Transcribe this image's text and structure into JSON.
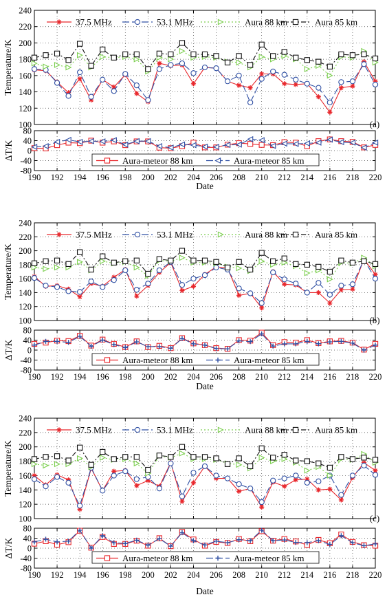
{
  "colors": {
    "s375": "#e8262b",
    "s531": "#2f4fa3",
    "aura88": "#7ccf4f",
    "aura85": "#111111",
    "diff88": "#e8262b",
    "diff85": "#2f4fa3",
    "grid": "#444444"
  },
  "chart_data": [
    {
      "type": "line",
      "panel_label": "(a)",
      "xlabel": "Date",
      "x": [
        190,
        191,
        192,
        193,
        194,
        195,
        196,
        197,
        198,
        199,
        200,
        201,
        202,
        203,
        204,
        205,
        206,
        207,
        208,
        209,
        210,
        211,
        212,
        213,
        214,
        215,
        216,
        217,
        218,
        219,
        220
      ],
      "xticks": [
        190,
        192,
        194,
        196,
        198,
        200,
        202,
        204,
        206,
        208,
        210,
        212,
        214,
        216,
        218,
        220
      ],
      "temperature": {
        "ylabel": "Temperature/K",
        "ylim": [
          100,
          240
        ],
        "yticks": [
          100,
          120,
          140,
          160,
          180,
          200,
          220,
          240
        ],
        "legend": [
          "37.5 MHz",
          "53.1 MHz",
          "Aura 88 km",
          "Aura 85 km"
        ],
        "series": [
          {
            "name": "37.5 MHz",
            "marker": "star",
            "values": [
              167,
              166,
              152,
              139,
              156,
              130,
              155,
              146,
              161,
              138,
              128,
              175,
              172,
              173,
              150,
              170,
              169,
              153,
              148,
              145,
              162,
              162,
              150,
              149,
              150,
              134,
              115,
              145,
              147,
              177,
              153
            ]
          },
          {
            "name": "53.1 MHz",
            "marker": "circle",
            "values": [
              168,
              167,
              151,
              135,
              164,
              134,
              155,
              141,
              162,
              148,
              130,
              168,
              173,
              175,
              163,
              170,
              169,
              153,
              160,
              127,
              156,
              165,
              161,
              155,
              150,
              145,
              127,
              152,
              153,
              174,
              149
            ]
          },
          {
            "name": "Aura 88 km",
            "marker": "triangle",
            "values": [
              175,
              171,
              173,
              170,
              185,
              170,
              183,
              182,
              183,
              180,
              165,
              182,
              180,
              190,
              182,
              183,
              182,
              177,
              176,
              170,
              183,
              180,
              184,
              180,
              168,
              172,
              160,
              183,
              182,
              190,
              176
            ]
          },
          {
            "name": "Aura 85 km",
            "marker": "square",
            "values": [
              182,
              185,
              187,
              179,
              199,
              172,
              192,
              182,
              186,
              186,
              168,
              187,
              186,
              200,
              186,
              186,
              184,
              176,
              184,
              173,
              198,
              184,
              189,
              182,
              179,
              177,
              171,
              186,
              185,
              186,
              181
            ]
          }
        ]
      },
      "difference": {
        "ylabel": "ΔT/K",
        "ylim": [
          -80,
          80
        ],
        "yticks": [
          -80,
          -40,
          0,
          40,
          80
        ],
        "legend": [
          "Aura-meteor 88 km",
          "Aura-meteor 85 km"
        ],
        "series": [
          {
            "name": "Aura-meteor 88 km",
            "marker": "square",
            "values": [
              10,
              9,
              22,
              32,
              30,
              40,
              32,
              37,
              22,
              37,
              37,
              12,
              10,
              18,
              32,
              13,
              13,
              24,
              30,
              27,
              23,
              22,
              34,
              32,
              18,
              38,
              45,
              38,
              35,
              13,
              23
            ]
          },
          {
            "name": "Aura-meteor 85 km",
            "marker": "triangle-left",
            "values": [
              15,
              18,
              35,
              43,
              35,
              38,
              37,
              42,
              24,
              38,
              38,
              18,
              12,
              25,
              22,
              16,
              15,
              23,
              24,
              46,
              42,
              19,
              28,
              27,
              29,
              32,
              44,
              34,
              32,
              12,
              32
            ]
          }
        ]
      }
    },
    {
      "type": "line",
      "panel_label": "(b)",
      "xlabel": "Date",
      "x": [
        190,
        191,
        192,
        193,
        194,
        195,
        196,
        197,
        198,
        199,
        200,
        201,
        202,
        203,
        204,
        205,
        206,
        207,
        208,
        209,
        210,
        211,
        212,
        213,
        214,
        215,
        216,
        217,
        218,
        219,
        220
      ],
      "xticks": [
        190,
        192,
        194,
        196,
        198,
        200,
        202,
        204,
        206,
        208,
        210,
        212,
        214,
        216,
        218,
        220
      ],
      "temperature": {
        "ylabel": "Temperature/K",
        "ylim": [
          100,
          240
        ],
        "yticks": [
          100,
          120,
          140,
          160,
          180,
          200,
          220,
          240
        ],
        "legend": [
          "37.5 MHz",
          "53.1 MHz",
          "Aura 88 km",
          "Aura 85 km"
        ],
        "series": [
          {
            "name": "37.5 MHz",
            "marker": "star",
            "values": [
              163,
              149,
              150,
              145,
              134,
              153,
              149,
              162,
              173,
              135,
              150,
              169,
              183,
              143,
              149,
              166,
              177,
              175,
              136,
              139,
              118,
              170,
              152,
              151,
              140,
              140,
              125,
              144,
              145,
              188,
              166
            ]
          },
          {
            "name": "53.1 MHz",
            "marker": "circle",
            "values": [
              161,
              150,
              148,
              142,
              141,
              156,
              148,
              158,
              172,
              144,
              153,
              172,
              184,
              151,
              160,
              165,
              176,
              173,
              146,
              139,
              125,
              169,
              159,
              153,
              140,
              154,
              137,
              150,
              152,
              187,
              160
            ]
          },
          {
            "name": "Aura 88 km",
            "marker": "triangle",
            "values": [
              176,
              174,
              176,
              176,
              184,
              172,
              185,
              182,
              184,
              176,
              164,
              186,
              185,
              190,
              183,
              183,
              182,
              177,
              175,
              171,
              185,
              180,
              183,
              178,
              168,
              172,
              159,
              183,
              182,
              190,
              178
            ]
          },
          {
            "name": "Aura 85 km",
            "marker": "square",
            "values": [
              182,
              185,
              186,
              181,
              198,
              173,
              192,
              183,
              185,
              186,
              167,
              188,
              186,
              200,
              186,
              186,
              184,
              176,
              184,
              173,
              197,
              185,
              189,
              181,
              180,
              177,
              170,
              186,
              183,
              185,
              181
            ]
          }
        ]
      },
      "difference": {
        "ylabel": "ΔT/K",
        "ylim": [
          -80,
          80
        ],
        "yticks": [
          -80,
          -40,
          0,
          40,
          80
        ],
        "legend": [
          "Aura-meteor 88 km",
          "Aura-meteor 85 km"
        ],
        "series": [
          {
            "name": "Aura-meteor 88 km",
            "marker": "square",
            "values": [
              25,
              30,
              38,
              36,
              57,
              18,
              42,
              25,
              12,
              35,
              12,
              17,
              8,
              48,
              27,
              20,
              8,
              5,
              40,
              38,
              70,
              20,
              32,
              30,
              40,
              28,
              35,
              37,
              30,
              2,
              25
            ]
          },
          {
            "name": "Aura-meteor 85 km",
            "marker": "plus",
            "values": [
              20,
              35,
              35,
              31,
              55,
              15,
              40,
              22,
              10,
              33,
              14,
              14,
              7,
              46,
              25,
              20,
              6,
              5,
              37,
              34,
              65,
              16,
              25,
              25,
              35,
              25,
              33,
              35,
              28,
              0,
              20
            ]
          }
        ]
      }
    },
    {
      "type": "line",
      "panel_label": "(c)",
      "xlabel": "Date",
      "x": [
        190,
        191,
        192,
        193,
        194,
        195,
        196,
        197,
        198,
        199,
        200,
        201,
        202,
        203,
        204,
        205,
        206,
        207,
        208,
        209,
        210,
        211,
        212,
        213,
        214,
        215,
        216,
        217,
        218,
        219,
        220
      ],
      "xticks": [
        190,
        192,
        194,
        196,
        198,
        200,
        202,
        204,
        206,
        208,
        210,
        212,
        214,
        216,
        218,
        220
      ],
      "temperature": {
        "ylabel": "Temperature/K",
        "ylim": [
          100,
          240
        ],
        "yticks": [
          100,
          120,
          140,
          160,
          180,
          200,
          220,
          240
        ],
        "legend": [
          "37.5 MHz",
          "53.1 MHz",
          "Aura 88 km",
          "Aura 85 km"
        ],
        "series": [
          {
            "name": "37.5 MHz",
            "marker": "star",
            "values": [
              160,
              147,
              161,
              154,
              113,
              170,
              139,
              166,
              167,
              146,
              153,
              145,
              178,
              124,
              150,
              173,
              156,
              156,
              138,
              142,
              116,
              151,
              145,
              154,
              155,
              140,
              141,
              126,
              157,
              178,
              167
            ]
          },
          {
            "name": "53.1 MHz",
            "marker": "circle",
            "values": [
              155,
              145,
              158,
              150,
              118,
              171,
              139,
              160,
              166,
              155,
              158,
              142,
              177,
              131,
              164,
              173,
              160,
              156,
              148,
              142,
              123,
              153,
              156,
              160,
              150,
              152,
              160,
              133,
              160,
              174,
              161
            ]
          },
          {
            "name": "Aura 88 km",
            "marker": "triangle",
            "values": [
              176,
              174,
              176,
              176,
              184,
              172,
              185,
              182,
              183,
              177,
              163,
              187,
              185,
              191,
              183,
              183,
              182,
              177,
              175,
              170,
              185,
              180,
              183,
              178,
              167,
              172,
              160,
              183,
              182,
              190,
              178
            ]
          },
          {
            "name": "Aura 85 km",
            "marker": "square",
            "values": [
              183,
              186,
              187,
              181,
              199,
              175,
              193,
              183,
              186,
              186,
              168,
              188,
              186,
              200,
              186,
              186,
              184,
              176,
              184,
              173,
              198,
              185,
              189,
              181,
              180,
              177,
              171,
              186,
              183,
              185,
              182
            ]
          }
        ]
      },
      "difference": {
        "ylabel": "ΔT/K",
        "ylim": [
          -80,
          80
        ],
        "yticks": [
          -80,
          -40,
          0,
          40,
          80
        ],
        "legend": [
          "Aura-meteor 88 km",
          "Aura-meteor 85 km"
        ],
        "series": [
          {
            "name": "Aura-meteor 88 km",
            "marker": "square",
            "values": [
              18,
              28,
              14,
              24,
              70,
              2,
              45,
              17,
              17,
              30,
              10,
              40,
              8,
              65,
              35,
              10,
              25,
              21,
              37,
              28,
              68,
              30,
              37,
              27,
              13,
              33,
              20,
              55,
              25,
              12,
              10
            ]
          },
          {
            "name": "Aura-meteor 85 km",
            "marker": "plus",
            "values": [
              25,
              36,
              25,
              28,
              72,
              0,
              50,
              22,
              19,
              32,
              12,
              38,
              8,
              62,
              30,
              13,
              28,
              22,
              34,
              30,
              72,
              30,
              33,
              23,
              22,
              30,
              15,
              50,
              22,
              10,
              17
            ]
          }
        ]
      }
    }
  ]
}
